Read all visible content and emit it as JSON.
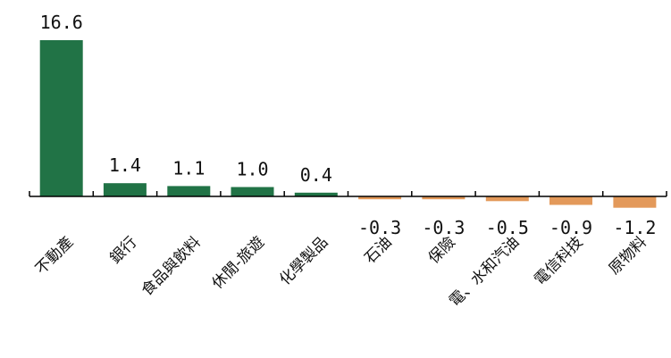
{
  "chart_data": {
    "type": "bar",
    "title": "",
    "xlabel": "",
    "ylabel": "",
    "ylim": [
      -1.8,
      17.8
    ],
    "grid": false,
    "legend": "none",
    "categories": [
      "不動產",
      "銀行",
      "食品與飲料",
      "休閒-旅遊",
      "化學製品",
      "石油",
      "保險",
      "電、水和汽油",
      "電信科技",
      "原物料"
    ],
    "values": [
      16.6,
      1.4,
      1.1,
      1.0,
      0.4,
      -0.3,
      -0.3,
      -0.5,
      -0.9,
      -1.2
    ],
    "value_labels": [
      "16.6",
      "1.4",
      "1.1",
      "1.0",
      "0.4",
      "-0.3",
      "-0.3",
      "-0.5",
      "-0.9",
      "-1.2"
    ],
    "colors": {
      "positive": "#217346",
      "negative": "#E3995A",
      "axis": "#000000"
    }
  }
}
